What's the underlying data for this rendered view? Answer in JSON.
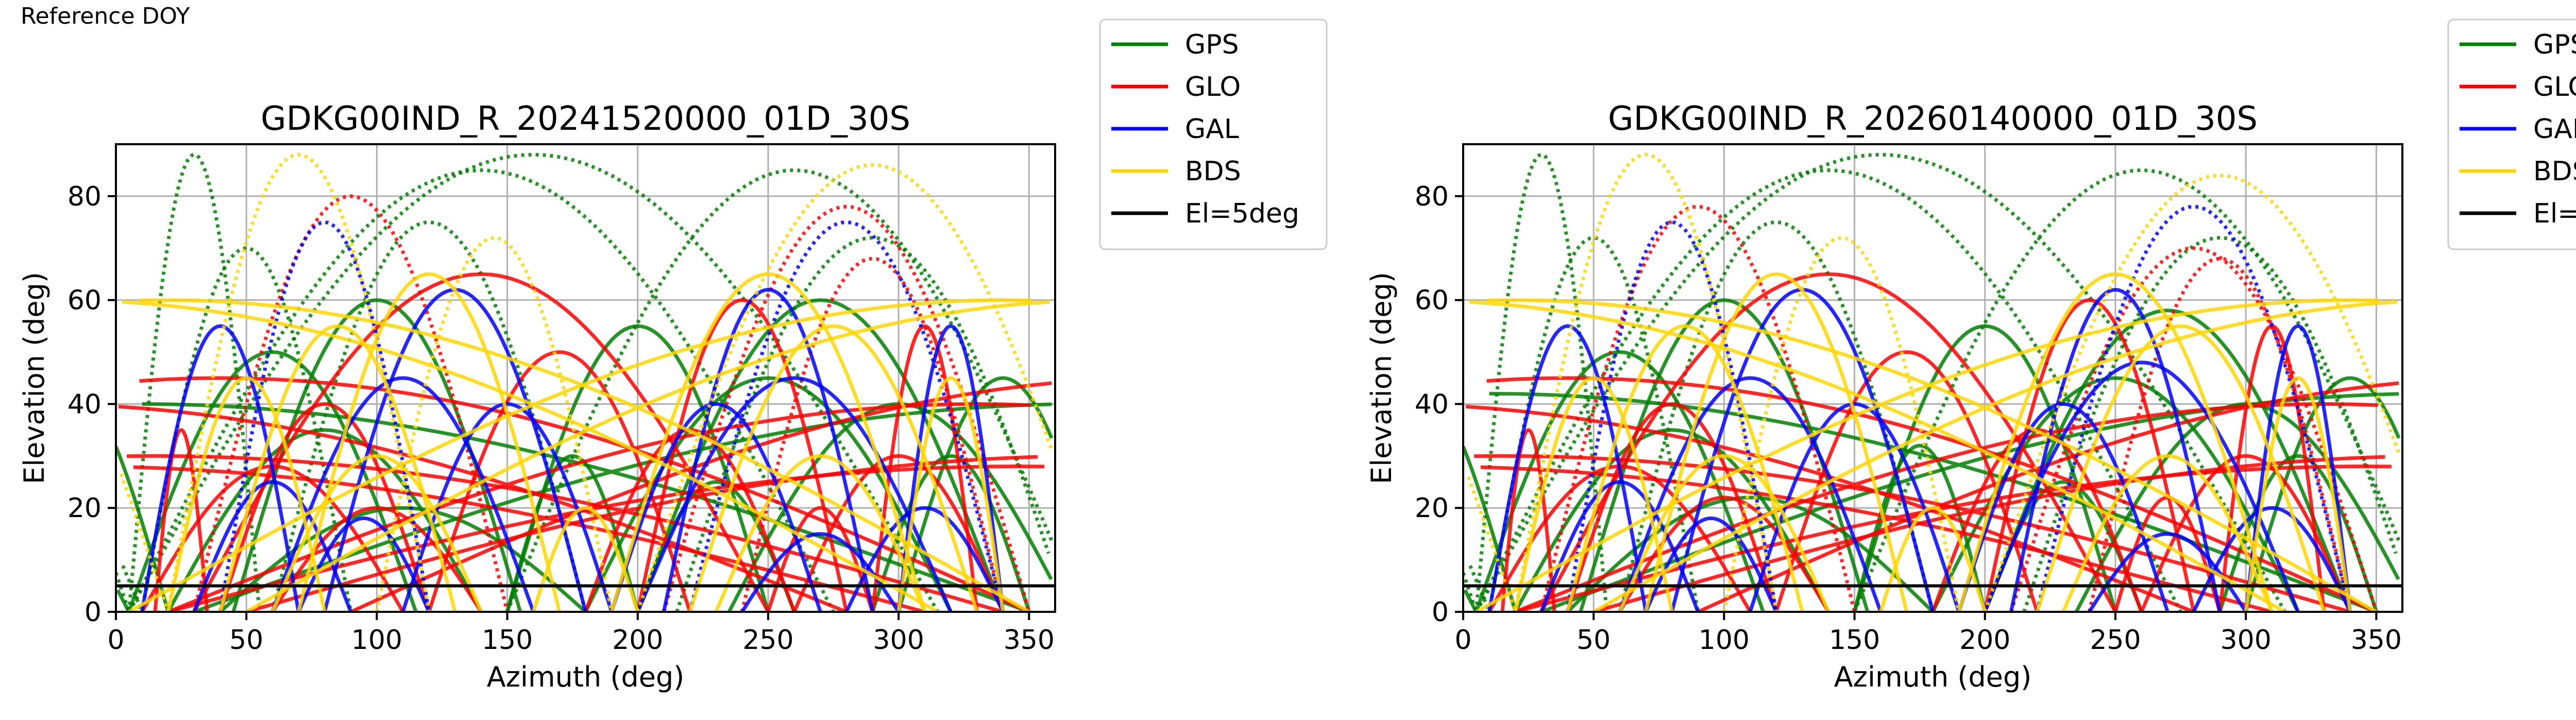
{
  "page_label": "Reference DOY",
  "chart_data": [
    {
      "type": "scatter",
      "title": "GDKG00IND_R_20241520000_01D_30S",
      "xlabel": "Azimuth (deg)",
      "ylabel": "Elevation (deg)",
      "xlim": [
        0,
        360
      ],
      "ylim": [
        0,
        90
      ],
      "xticks": [
        "0",
        "50",
        "100",
        "150",
        "200",
        "250",
        "300",
        "350"
      ],
      "yticks": [
        "0",
        "20",
        "40",
        "60",
        "80"
      ],
      "grid": true,
      "legend_position": "outside-right",
      "series": [
        {
          "name": "GPS",
          "color": "#008000",
          "arcs": [
            [
              160,
              88,
              5
            ],
            [
              30,
              88,
              5
            ],
            [
              100,
              60,
              45
            ],
            [
              140,
              85,
              5
            ],
            [
              270,
              60,
              200
            ],
            [
              300,
              40,
              235
            ],
            [
              110,
              20,
              40
            ],
            [
              260,
              85,
              150
            ],
            [
              320,
              30,
              290
            ],
            [
              50,
              70,
              10
            ],
            [
              200,
              55,
              150
            ],
            [
              340,
              45,
              300
            ],
            [
              80,
              35,
              20
            ],
            [
              230,
              25,
              200
            ],
            [
              120,
              75,
              60
            ],
            [
              290,
              72,
              215
            ],
            [
              60,
              50,
              5
            ],
            [
              250,
              45,
              180
            ],
            [
              175,
              30,
              150
            ],
            [
              10,
              40,
              350
            ]
          ]
        },
        {
          "name": "GLO",
          "color": "#ff0000",
          "arcs": [
            [
              25,
              35,
              15
            ],
            [
              330,
              40,
              20
            ],
            [
              90,
              80,
              30
            ],
            [
              280,
              78,
              210
            ],
            [
              60,
              28,
              10
            ],
            [
              300,
              30,
              260
            ],
            [
              140,
              65,
              30
            ],
            [
              240,
              60,
              200
            ],
            [
              40,
              45,
              350
            ],
            [
              310,
              55,
              330
            ],
            [
              100,
              20,
              60
            ],
            [
              220,
              35,
              180
            ],
            [
              170,
              50,
              120
            ],
            [
              270,
              20,
              250
            ],
            [
              15,
              30,
              340
            ],
            [
              345,
              28,
              20
            ],
            [
              80,
              40,
              40
            ],
            [
              290,
              68,
              240
            ]
          ]
        },
        {
          "name": "GAL",
          "color": "#0000ff",
          "arcs": [
            [
              80,
              75,
              40
            ],
            [
              280,
              75,
              220
            ],
            [
              110,
              45,
              60
            ],
            [
              260,
              45,
              200
            ],
            [
              60,
              25,
              30
            ],
            [
              310,
              20,
              280
            ],
            [
              150,
              40,
              110
            ],
            [
              230,
              40,
              190
            ],
            [
              40,
              55,
              10
            ],
            [
              320,
              55,
              300
            ],
            [
              95,
              18,
              70
            ],
            [
              270,
              15,
              240
            ],
            [
              130,
              62,
              80
            ],
            [
              250,
              62,
              210
            ]
          ]
        },
        {
          "name": "BDS",
          "color": "#ffd700",
          "arcs": [
            [
              70,
              88,
              20
            ],
            [
              290,
              86,
              200
            ],
            [
              120,
              65,
              70
            ],
            [
              250,
              65,
              190
            ],
            [
              50,
              45,
              20
            ],
            [
              320,
              45,
              300
            ],
            [
              100,
              30,
              60
            ],
            [
              270,
              30,
              230
            ],
            [
              20,
              60,
              350
            ],
            [
              340,
              60,
              5
            ],
            [
              180,
              20,
              160
            ],
            [
              85,
              55,
              40
            ],
            [
              275,
              55,
              220
            ],
            [
              145,
              72,
              100
            ]
          ]
        }
      ]
    },
    {
      "type": "scatter",
      "title": "GDKG00IND_R_20260140000_01D_30S",
      "xlabel": "Azimuth (deg)",
      "ylabel": "Elevation (deg)",
      "xlim": [
        0,
        360
      ],
      "ylim": [
        0,
        90
      ],
      "xticks": [
        "0",
        "50",
        "100",
        "150",
        "200",
        "250",
        "300",
        "350"
      ],
      "yticks": [
        "0",
        "20",
        "40",
        "60",
        "80"
      ],
      "grid": true,
      "legend_position": "outside-right",
      "series": [
        {
          "name": "GPS",
          "color": "#008000",
          "arcs": [
            [
              160,
              88,
              5
            ],
            [
              30,
              88,
              5
            ],
            [
              100,
              60,
              45
            ],
            [
              140,
              85,
              5
            ],
            [
              270,
              58,
              200
            ],
            [
              300,
              40,
              235
            ],
            [
              110,
              22,
              40
            ],
            [
              260,
              85,
              150
            ],
            [
              320,
              30,
              290
            ],
            [
              50,
              72,
              10
            ],
            [
              200,
              55,
              150
            ],
            [
              340,
              45,
              300
            ],
            [
              80,
              35,
              20
            ],
            [
              230,
              25,
              200
            ],
            [
              120,
              75,
              60
            ],
            [
              290,
              72,
              215
            ],
            [
              60,
              50,
              5
            ],
            [
              250,
              45,
              180
            ],
            [
              175,
              32,
              150
            ],
            [
              10,
              42,
              350
            ]
          ]
        },
        {
          "name": "GLO",
          "color": "#ff0000",
          "arcs": [
            [
              25,
              35,
              15
            ],
            [
              330,
              40,
              20
            ],
            [
              90,
              78,
              30
            ],
            [
              280,
              70,
              210
            ],
            [
              60,
              28,
              10
            ],
            [
              300,
              30,
              260
            ],
            [
              140,
              65,
              30
            ],
            [
              240,
              60,
              200
            ],
            [
              40,
              45,
              350
            ],
            [
              310,
              55,
              330
            ],
            [
              100,
              22,
              60
            ],
            [
              220,
              35,
              180
            ],
            [
              170,
              50,
              120
            ],
            [
              270,
              22,
              250
            ],
            [
              15,
              30,
              340
            ],
            [
              345,
              28,
              20
            ],
            [
              80,
              40,
              40
            ],
            [
              290,
              68,
              240
            ]
          ]
        },
        {
          "name": "GAL",
          "color": "#0000ff",
          "arcs": [
            [
              80,
              75,
              40
            ],
            [
              280,
              78,
              220
            ],
            [
              110,
              45,
              60
            ],
            [
              260,
              48,
              200
            ],
            [
              60,
              25,
              30
            ],
            [
              310,
              20,
              280
            ],
            [
              150,
              40,
              110
            ],
            [
              230,
              40,
              190
            ],
            [
              40,
              55,
              10
            ],
            [
              320,
              55,
              300
            ],
            [
              95,
              18,
              70
            ],
            [
              270,
              15,
              240
            ],
            [
              130,
              62,
              80
            ],
            [
              250,
              62,
              210
            ]
          ]
        },
        {
          "name": "BDS",
          "color": "#ffd700",
          "arcs": [
            [
              70,
              88,
              20
            ],
            [
              290,
              84,
              200
            ],
            [
              120,
              65,
              70
            ],
            [
              250,
              65,
              190
            ],
            [
              50,
              45,
              20
            ],
            [
              320,
              45,
              300
            ],
            [
              100,
              30,
              60
            ],
            [
              270,
              30,
              230
            ],
            [
              20,
              60,
              350
            ],
            [
              340,
              60,
              5
            ],
            [
              180,
              20,
              160
            ],
            [
              85,
              55,
              40
            ],
            [
              275,
              55,
              220
            ],
            [
              145,
              72,
              100
            ]
          ]
        }
      ],
      "reference_line": {
        "name": "El=5deg",
        "y": 5,
        "color": "#000000"
      }
    }
  ],
  "legend": [
    {
      "label": "GPS",
      "color": "#008000"
    },
    {
      "label": "GLO",
      "color": "#ff0000"
    },
    {
      "label": "GAL",
      "color": "#0000ff"
    },
    {
      "label": "BDS",
      "color": "#ffd700"
    },
    {
      "label": "El=5deg",
      "color": "#000000"
    }
  ],
  "reference_line": {
    "name": "El=5deg",
    "y": 5
  }
}
